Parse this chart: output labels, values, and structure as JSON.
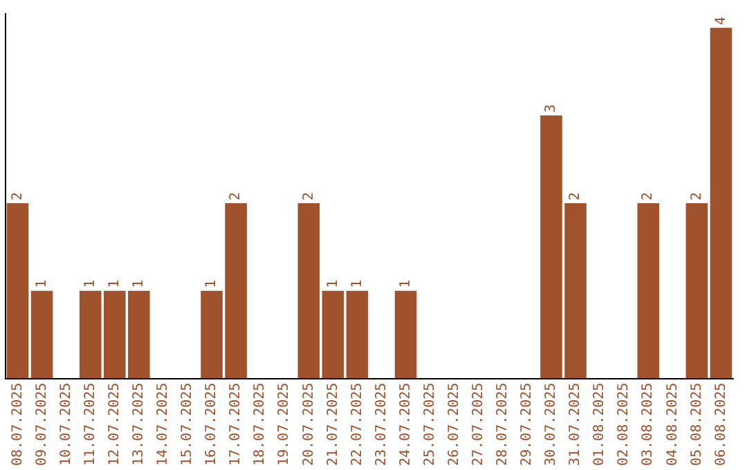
{
  "chart_data": {
    "type": "bar",
    "categories": [
      "08.07.2025",
      "09.07.2025",
      "10.07.2025",
      "11.07.2025",
      "12.07.2025",
      "13.07.2025",
      "14.07.2025",
      "15.07.2025",
      "16.07.2025",
      "17.07.2025",
      "18.07.2025",
      "19.07.2025",
      "20.07.2025",
      "21.07.2025",
      "22.07.2025",
      "23.07.2025",
      "24.07.2025",
      "25.07.2025",
      "26.07.2025",
      "27.07.2025",
      "28.07.2025",
      "29.07.2025",
      "30.07.2025",
      "31.07.2025",
      "01.08.2025",
      "02.08.2025",
      "03.08.2025",
      "04.08.2025",
      "05.08.2025",
      "06.08.2025"
    ],
    "values": [
      2,
      1,
      0,
      1,
      1,
      1,
      0,
      0,
      1,
      2,
      0,
      0,
      2,
      1,
      1,
      0,
      1,
      0,
      0,
      0,
      0,
      0,
      3,
      2,
      0,
      0,
      2,
      0,
      2,
      4
    ],
    "value_labels": [
      "2",
      "1",
      null,
      "1",
      "1",
      "1",
      null,
      null,
      "1",
      "2",
      null,
      null,
      "2",
      "1",
      "1",
      null,
      "1",
      null,
      null,
      null,
      null,
      null,
      "3",
      "2",
      null,
      null,
      "2",
      null,
      "2",
      "4"
    ],
    "color": "#a0522d",
    "grid": false,
    "legend": false,
    "tick_labels": "x"
  }
}
